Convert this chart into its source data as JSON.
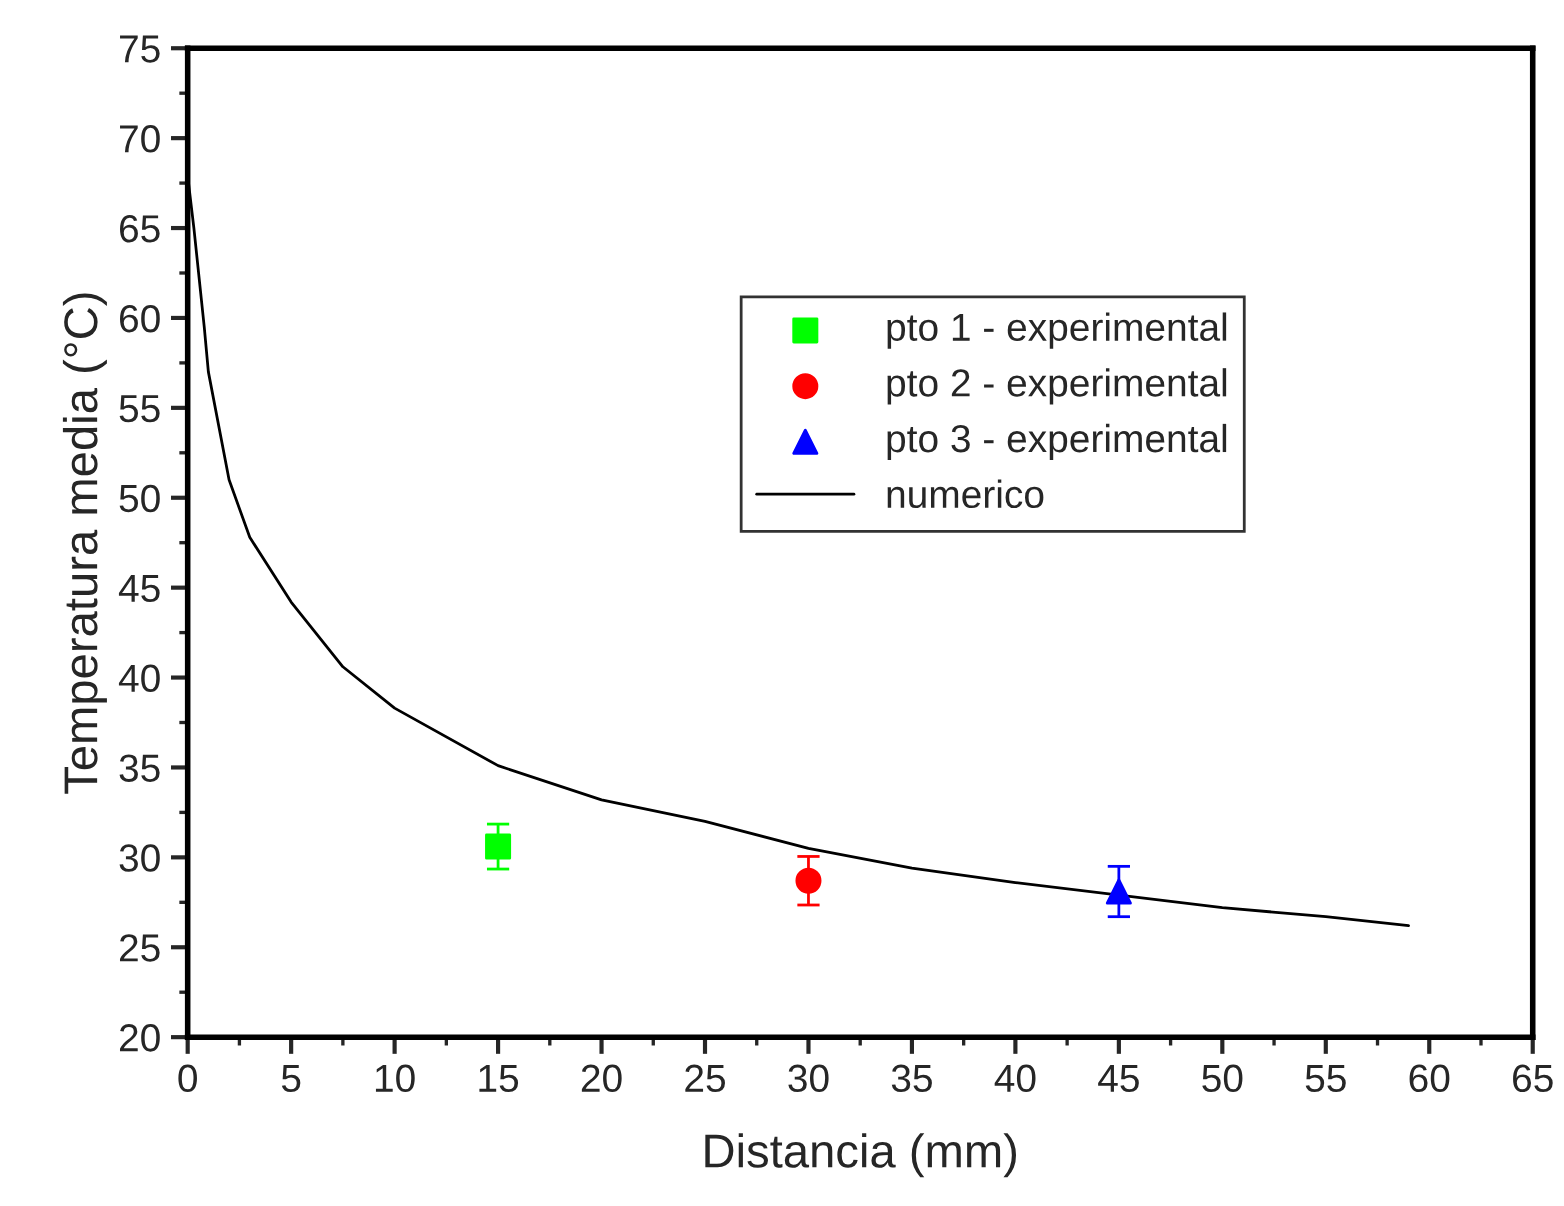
{
  "chart_data": {
    "type": "scatter",
    "xlabel": "Distancia (mm)",
    "ylabel": "Temperatura media (°C)",
    "xlim": [
      0,
      65
    ],
    "xticks": [
      0,
      5,
      10,
      15,
      20,
      25,
      30,
      35,
      40,
      45,
      50,
      55,
      60,
      65
    ],
    "ylim": [
      20,
      75
    ],
    "yticks": [
      20,
      25,
      30,
      35,
      40,
      45,
      50,
      55,
      60,
      65,
      70,
      75
    ],
    "grid": false,
    "legend": "right",
    "series": [
      {
        "name": "pto 1 - experimental",
        "marker": "square",
        "color": "#00ff00",
        "x": [
          15
        ],
        "values": [
          30.6
        ],
        "errors": [
          1.25
        ]
      },
      {
        "name": "pto 2 - experimental",
        "marker": "circle",
        "color": "#ff0000",
        "x": [
          30
        ],
        "values": [
          28.7
        ],
        "errors": [
          1.35
        ]
      },
      {
        "name": "pto 3 - experimental",
        "marker": "triangle",
        "color": "#0000ff",
        "x": [
          45
        ],
        "values": [
          28.1
        ],
        "errors": [
          1.4
        ]
      },
      {
        "name": "numerico",
        "type": "line",
        "marker": "none",
        "line_style": "solid",
        "color": "#000000",
        "x": [
          0,
          0.3,
          0.8,
          1,
          2,
          3,
          5,
          7.5,
          10,
          15,
          20,
          25,
          30,
          35,
          40,
          50,
          55,
          59
        ],
        "values": [
          67.9,
          65,
          59.5,
          57,
          51,
          47.8,
          44.2,
          40.6,
          38.3,
          35.1,
          33.2,
          32.0,
          30.5,
          29.4,
          28.6,
          27.2,
          26.7,
          26.2
        ]
      }
    ]
  }
}
